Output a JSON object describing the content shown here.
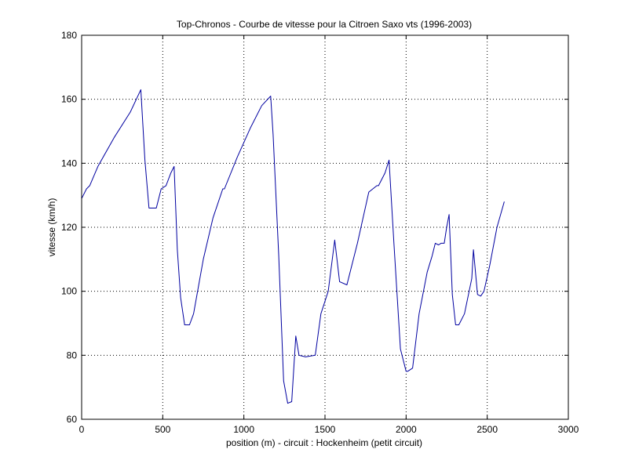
{
  "chart_data": {
    "type": "line",
    "title": "Top-Chronos - Courbe de vitesse pour la Citroen Saxo vts (1996-2003)",
    "xlabel": "position (m) - circuit : Hockenheim (petit circuit)",
    "ylabel": "vitesse (km/h)",
    "xlim": [
      0,
      3000
    ],
    "ylim": [
      60,
      180
    ],
    "xticks": [
      0,
      500,
      1000,
      1500,
      2000,
      2500,
      3000
    ],
    "yticks": [
      60,
      80,
      100,
      120,
      140,
      160,
      180
    ],
    "grid": true,
    "line_color": "#0000a0",
    "series": [
      {
        "x": [
          0,
          30,
          50,
          100,
          200,
          300,
          365,
          390,
          415,
          460,
          490,
          520,
          550,
          570,
          590,
          610,
          635,
          665,
          690,
          750,
          810,
          870,
          880,
          960,
          1040,
          1110,
          1165,
          1180,
          1215,
          1245,
          1270,
          1295,
          1320,
          1340,
          1380,
          1440,
          1475,
          1520,
          1560,
          1590,
          1635,
          1700,
          1770,
          1820,
          1830,
          1870,
          1895,
          1925,
          1965,
          2000,
          2010,
          2040,
          2080,
          2130,
          2160,
          2180,
          2200,
          2215,
          2235,
          2250,
          2265,
          2285,
          2305,
          2325,
          2360,
          2405,
          2415,
          2440,
          2460,
          2480,
          2515,
          2560,
          2605
        ],
        "y": [
          129,
          132,
          133,
          139,
          148,
          156,
          163,
          141,
          126,
          126,
          132,
          133,
          137,
          139,
          113,
          98,
          89.5,
          89.5,
          93,
          110,
          123,
          132,
          132,
          142,
          151,
          158,
          161,
          149,
          111,
          72,
          65,
          65.5,
          86,
          80,
          79.5,
          80,
          93,
          100,
          116,
          103,
          102,
          115,
          131,
          133,
          133,
          137,
          141,
          115,
          82,
          75,
          75,
          76,
          93,
          106,
          111,
          115,
          114.5,
          115,
          115,
          120,
          124,
          99,
          89.5,
          89.5,
          93,
          104,
          113,
          99,
          98.5,
          100,
          108,
          120,
          128
        ]
      }
    ]
  }
}
